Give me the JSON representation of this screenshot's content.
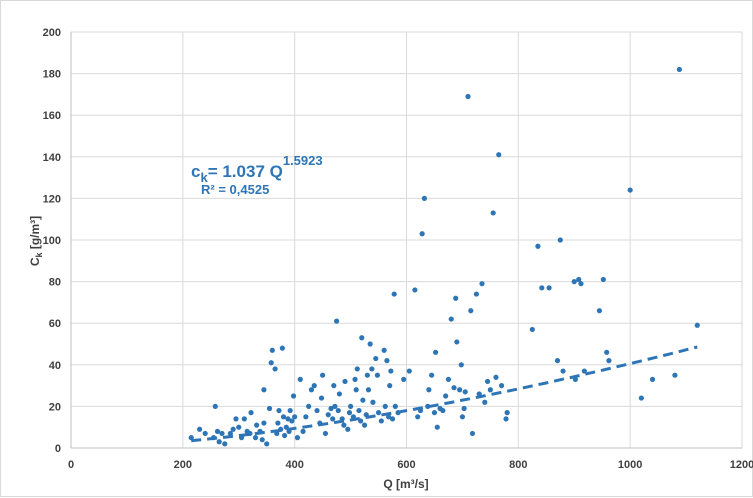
{
  "chart_data": {
    "type": "scatter",
    "xlabel": "Q [m³/s]",
    "ylabel_main": "C",
    "ylabel_sub": "k",
    "ylabel_unit": " [g/m³]",
    "xlim": [
      0,
      1200
    ],
    "ylim": [
      0,
      200
    ],
    "x_ticks": [
      0,
      200,
      400,
      600,
      800,
      1000,
      1200
    ],
    "y_ticks": [
      0,
      20,
      40,
      60,
      80,
      100,
      120,
      140,
      160,
      180,
      200
    ],
    "grid": true,
    "colors": {
      "points": "#2e75b6",
      "trend": "#2e75b6",
      "grid": "#d9d9d9",
      "axis": "#bfbfbf"
    },
    "trendline": {
      "type": "power",
      "coefficient": 1.037,
      "exponent": 1.5923,
      "x_range": [
        215,
        1120
      ],
      "style": "dashed",
      "eq_prefix": "c",
      "eq_sub": "k",
      "eq_main": "= 1.037 Q",
      "eq_exp": "1.5923",
      "r2_label": "R² = 0,4525"
    },
    "points": [
      [
        215,
        5
      ],
      [
        230,
        9
      ],
      [
        240,
        7
      ],
      [
        255,
        5
      ],
      [
        258,
        20
      ],
      [
        262,
        8
      ],
      [
        265,
        3
      ],
      [
        270,
        7
      ],
      [
        275,
        2
      ],
      [
        285,
        7
      ],
      [
        290,
        9
      ],
      [
        295,
        14
      ],
      [
        300,
        10
      ],
      [
        305,
        5
      ],
      [
        310,
        14
      ],
      [
        315,
        8
      ],
      [
        320,
        7
      ],
      [
        322,
        17
      ],
      [
        330,
        5
      ],
      [
        332,
        11
      ],
      [
        338,
        8
      ],
      [
        342,
        4
      ],
      [
        345,
        12
      ],
      [
        345,
        28
      ],
      [
        350,
        2
      ],
      [
        355,
        19
      ],
      [
        358,
        41
      ],
      [
        360,
        47
      ],
      [
        365,
        38
      ],
      [
        368,
        7
      ],
      [
        370,
        12
      ],
      [
        372,
        18
      ],
      [
        375,
        9
      ],
      [
        378,
        48
      ],
      [
        380,
        15
      ],
      [
        382,
        6
      ],
      [
        385,
        10
      ],
      [
        388,
        14
      ],
      [
        390,
        8
      ],
      [
        392,
        18
      ],
      [
        395,
        13
      ],
      [
        398,
        25
      ],
      [
        400,
        15
      ],
      [
        405,
        5
      ],
      [
        410,
        33
      ],
      [
        415,
        8
      ],
      [
        420,
        15
      ],
      [
        425,
        20
      ],
      [
        430,
        28
      ],
      [
        435,
        30
      ],
      [
        440,
        18
      ],
      [
        445,
        12
      ],
      [
        448,
        24
      ],
      [
        450,
        35
      ],
      [
        455,
        7
      ],
      [
        460,
        16
      ],
      [
        465,
        19
      ],
      [
        468,
        14
      ],
      [
        470,
        30
      ],
      [
        472,
        20
      ],
      [
        475,
        61
      ],
      [
        478,
        18
      ],
      [
        480,
        26
      ],
      [
        485,
        14
      ],
      [
        488,
        11
      ],
      [
        490,
        32
      ],
      [
        495,
        9
      ],
      [
        498,
        17
      ],
      [
        500,
        20
      ],
      [
        505,
        15
      ],
      [
        508,
        33
      ],
      [
        510,
        28
      ],
      [
        512,
        38
      ],
      [
        515,
        18
      ],
      [
        518,
        13
      ],
      [
        520,
        53
      ],
      [
        522,
        23
      ],
      [
        525,
        11
      ],
      [
        528,
        16
      ],
      [
        530,
        35
      ],
      [
        532,
        28
      ],
      [
        535,
        50
      ],
      [
        538,
        38
      ],
      [
        540,
        22
      ],
      [
        545,
        43
      ],
      [
        548,
        35
      ],
      [
        550,
        17
      ],
      [
        555,
        13
      ],
      [
        560,
        47
      ],
      [
        562,
        20
      ],
      [
        565,
        42
      ],
      [
        568,
        15
      ],
      [
        570,
        30
      ],
      [
        572,
        37
      ],
      [
        575,
        14
      ],
      [
        578,
        74
      ],
      [
        580,
        20
      ],
      [
        585,
        17
      ],
      [
        595,
        33
      ],
      [
        605,
        37
      ],
      [
        615,
        76
      ],
      [
        620,
        15
      ],
      [
        625,
        18
      ],
      [
        628,
        103
      ],
      [
        632,
        120
      ],
      [
        638,
        20
      ],
      [
        640,
        28
      ],
      [
        645,
        35
      ],
      [
        650,
        17
      ],
      [
        652,
        46
      ],
      [
        655,
        10
      ],
      [
        660,
        19
      ],
      [
        665,
        18
      ],
      [
        670,
        25
      ],
      [
        675,
        33
      ],
      [
        680,
        62
      ],
      [
        685,
        29
      ],
      [
        688,
        72
      ],
      [
        690,
        51
      ],
      [
        695,
        28
      ],
      [
        698,
        40
      ],
      [
        700,
        15
      ],
      [
        703,
        19
      ],
      [
        705,
        27
      ],
      [
        710,
        169
      ],
      [
        715,
        66
      ],
      [
        718,
        7
      ],
      [
        725,
        74
      ],
      [
        730,
        26
      ],
      [
        735,
        79
      ],
      [
        740,
        22
      ],
      [
        745,
        32
      ],
      [
        750,
        28
      ],
      [
        755,
        113
      ],
      [
        760,
        34
      ],
      [
        765,
        141
      ],
      [
        770,
        30
      ],
      [
        778,
        14
      ],
      [
        780,
        17
      ],
      [
        825,
        57
      ],
      [
        835,
        97
      ],
      [
        842,
        77
      ],
      [
        855,
        77
      ],
      [
        870,
        42
      ],
      [
        875,
        100
      ],
      [
        880,
        37
      ],
      [
        900,
        80
      ],
      [
        902,
        33
      ],
      [
        908,
        81
      ],
      [
        912,
        79
      ],
      [
        918,
        37
      ],
      [
        945,
        66
      ],
      [
        952,
        81
      ],
      [
        958,
        46
      ],
      [
        962,
        42
      ],
      [
        1000,
        124
      ],
      [
        1020,
        24
      ],
      [
        1040,
        33
      ],
      [
        1080,
        35
      ],
      [
        1088,
        182
      ],
      [
        1120,
        59
      ]
    ]
  }
}
